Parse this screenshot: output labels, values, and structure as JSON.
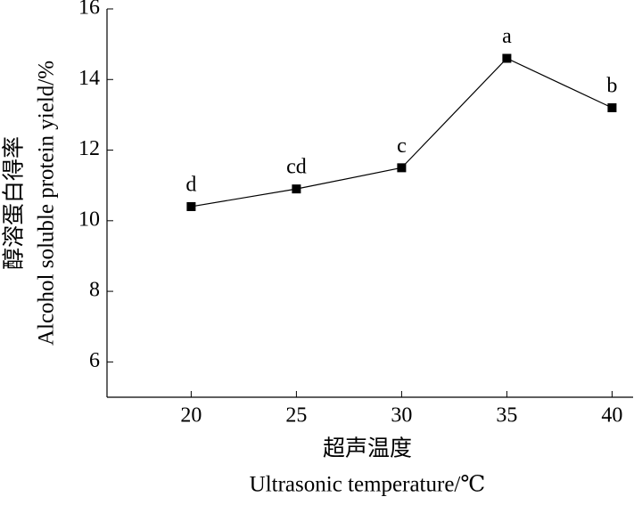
{
  "chart_data": {
    "type": "line",
    "y_label": [
      "醇溶蛋白得率",
      "Alcohol soluble protein yield/%"
    ],
    "x_label": [
      "超声温度",
      "Ultrasonic temperature/℃"
    ],
    "x": [
      20,
      25,
      30,
      35,
      40
    ],
    "series": [
      {
        "color": "#000000",
        "values": [
          10.4,
          10.9,
          11.5,
          14.6,
          13.2
        ]
      }
    ],
    "annotations": [
      "d",
      "cd",
      "c",
      "a",
      "b"
    ],
    "xlim": [
      16,
      41
    ],
    "xticks": [
      20,
      25,
      30,
      35,
      40
    ],
    "ylim": [
      5,
      16
    ],
    "yticks": [
      6,
      8,
      10,
      12,
      14,
      16
    ],
    "grid": false
  }
}
